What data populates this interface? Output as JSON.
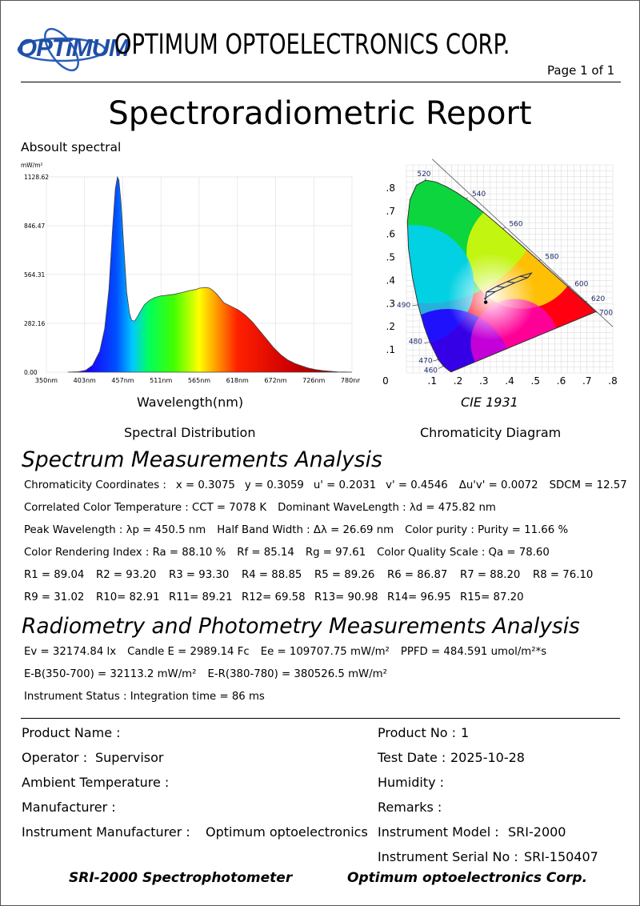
{
  "header": {
    "logo_text": "OPTiMUM",
    "company": "OPTIMUM OPTOELECTRONICS CORP.",
    "page": "Page 1 of 1"
  },
  "title": "Spectroradiometric Report",
  "spectral": {
    "heading": "Absoult spectral",
    "unit": "mW/m²",
    "xlabel": "Wavelength(nm)",
    "caption": "Spectral Distribution"
  },
  "cie": {
    "label": "CIE 1931",
    "caption": "Chromaticity Diagram"
  },
  "chart_data": [
    {
      "type": "area",
      "title": "Absoult spectral",
      "xlabel": "Wavelength(nm)",
      "ylabel": "mW/m²",
      "xlim": [
        350,
        780
      ],
      "ylim": [
        0,
        1128.62
      ],
      "x_ticks": [
        "350nm",
        "403nm",
        "457nm",
        "511nm",
        "565nm",
        "618nm",
        "672nm",
        "726nm",
        "780nm"
      ],
      "y_ticks": [
        "0.00",
        "282.16",
        "564.31",
        "846.47",
        "1128.62"
      ],
      "x": [
        380,
        395,
        405,
        415,
        425,
        432,
        438,
        443,
        447,
        450,
        452,
        455,
        459,
        463,
        467,
        470,
        474,
        478,
        482,
        488,
        495,
        502,
        510,
        520,
        530,
        540,
        550,
        560,
        565,
        570,
        575,
        580,
        585,
        590,
        595,
        600,
        610,
        620,
        630,
        640,
        650,
        660,
        670,
        680,
        690,
        700,
        710,
        720,
        730,
        740,
        750,
        760,
        770,
        780
      ],
      "values": [
        0,
        3,
        10,
        40,
        120,
        250,
        480,
        820,
        1060,
        1128,
        1110,
        980,
        720,
        460,
        340,
        300,
        295,
        320,
        350,
        390,
        415,
        430,
        440,
        445,
        450,
        460,
        470,
        478,
        485,
        488,
        490,
        485,
        470,
        450,
        425,
        400,
        380,
        360,
        330,
        290,
        240,
        190,
        140,
        100,
        70,
        50,
        35,
        22,
        14,
        9,
        5,
        2,
        1,
        0
      ]
    },
    {
      "type": "scatter",
      "title": "CIE 1931",
      "xlim": [
        0,
        0.8
      ],
      "ylim": [
        0,
        0.9
      ],
      "x_ticks": [
        "0",
        ".1",
        ".2",
        ".3",
        ".4",
        ".5",
        ".6",
        ".7",
        ".8"
      ],
      "y_ticks": [
        ".1",
        ".2",
        ".3",
        ".4",
        ".5",
        ".6",
        ".7",
        ".8"
      ],
      "locus_labels": [
        {
          "nm": "460",
          "x": 0.144,
          "y": 0.0297
        },
        {
          "nm": "470",
          "x": 0.1241,
          "y": 0.0578
        },
        {
          "nm": "480",
          "x": 0.0913,
          "y": 0.1327
        },
        {
          "nm": "490",
          "x": 0.0454,
          "y": 0.295
        },
        {
          "nm": "520",
          "x": 0.0743,
          "y": 0.8338
        },
        {
          "nm": "540",
          "x": 0.2296,
          "y": 0.7543
        },
        {
          "nm": "560",
          "x": 0.3731,
          "y": 0.6245
        },
        {
          "nm": "580",
          "x": 0.5125,
          "y": 0.4866
        },
        {
          "nm": "600",
          "x": 0.627,
          "y": 0.3725
        },
        {
          "nm": "620",
          "x": 0.6915,
          "y": 0.3083
        },
        {
          "nm": "700",
          "x": 0.7347,
          "y": 0.2653
        }
      ],
      "points": [
        {
          "name": "measured",
          "x": 0.3075,
          "y": 0.3059
        }
      ]
    }
  ],
  "spectrum_section": {
    "heading": "Spectrum Measurements Analysis",
    "lines": [
      [
        "Chromaticity Coordinates :",
        "x =  0.3075",
        "y = 0.3059",
        "u' = 0.2031",
        "v' = 0.4546",
        "Δu'v' = 0.0072",
        "SDCM = 12.57"
      ],
      [
        "Correlated Color Temperature : CCT = 7078 K",
        "Dominant WaveLength : λd = 475.82 nm"
      ],
      [
        "Peak Wavelength : λp = 450.5 nm",
        "Half Band Width : Δλ = 26.69 nm",
        "Color purity : Purity = 11.66 %"
      ],
      [
        "Color Rendering Index : Ra = 88.10 %",
        "Rf = 85.14",
        "Rg = 97.61",
        "Color Quality Scale : Qa = 78.60"
      ]
    ],
    "r_row1": [
      "R1 = 89.04",
      "R2 = 93.20",
      "R3 = 93.30",
      "R4 = 88.85",
      "R5 = 89.26",
      "R6 = 86.87",
      "R7 = 88.20",
      "R8 = 76.10"
    ],
    "r_row2": [
      "R9 = 31.02",
      "R10= 82.91",
      "R11= 89.21",
      "R12= 69.58",
      "R13= 90.98",
      "R14= 96.95",
      "R15= 87.20"
    ]
  },
  "radiometry_section": {
    "heading": "Radiometry and Photometry Measurements Analysis",
    "lines": [
      [
        "Ev = 32174.84 lx",
        "Candle E = 2989.14 Fc",
        "Ee = 109707.75 mW/m²",
        "PPFD = 484.591 umol/m²*s"
      ],
      [
        "E-B(350-700) = 32113.2 mW/m²",
        "E-R(380-780) = 380526.5 mW/m²"
      ],
      [
        "Instrument Status : Integration time = 86 ms"
      ]
    ]
  },
  "info": {
    "product_name_label": "Product Name :",
    "product_no_label": "Product No :",
    "product_no": "1",
    "operator_label": "Operator :",
    "operator": "Supervisor",
    "test_date_label": "Test Date :",
    "test_date": "2025-10-28",
    "ambient_label": "Ambient Temperature :",
    "humidity_label": "Humidity :",
    "manufacturer_label": "Manufacturer :",
    "remarks_label": "Remarks :",
    "inst_manufacturer_label": "Instrument Manufacturer :",
    "inst_manufacturer": "Optimum optoelectronics",
    "inst_model_label": "Instrument Model :",
    "inst_model": "SRI-2000",
    "inst_serial_label": "Instrument Serial No :",
    "inst_serial": "SRI-150407"
  },
  "footer": {
    "left": "SRI-2000 Spectrophotometer",
    "right": "Optimum optoelectronics Corp."
  }
}
